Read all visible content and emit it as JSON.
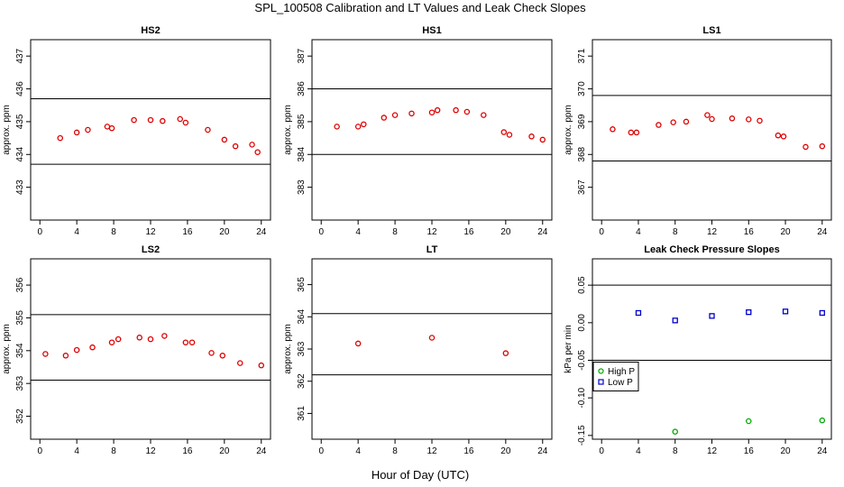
{
  "figure": {
    "title": "SPL_100508  Calibration and LT Values and Leak Check Slopes",
    "xlabel": "Hour of Day (UTC)"
  },
  "chart_data": [
    {
      "type": "scatter",
      "title": "HS2",
      "ylabel": "approx. ppm",
      "xlim": [
        -1,
        25
      ],
      "ylim": [
        432,
        437.5
      ],
      "xticks": [
        0,
        4,
        8,
        12,
        16,
        20,
        24
      ],
      "yticks": [
        433,
        434,
        435,
        436,
        437
      ],
      "hlines": [
        433.7,
        435.7
      ],
      "series": [
        {
          "color": "#dd0000",
          "marker": "circle",
          "x": [
            2.2,
            4.0,
            5.2,
            7.3,
            7.8,
            10.2,
            12.0,
            13.3,
            15.2,
            15.8,
            18.2,
            20.0,
            21.2,
            23.0,
            23.6
          ],
          "y": [
            434.5,
            434.67,
            434.75,
            434.85,
            434.8,
            435.05,
            435.05,
            435.02,
            435.08,
            434.97,
            434.75,
            434.45,
            434.25,
            434.3,
            434.07
          ]
        }
      ]
    },
    {
      "type": "scatter",
      "title": "HS1",
      "ylabel": "approx. ppm",
      "xlim": [
        -1,
        25
      ],
      "ylim": [
        382,
        387.5
      ],
      "xticks": [
        0,
        4,
        8,
        12,
        16,
        20,
        24
      ],
      "yticks": [
        383,
        384,
        385,
        386,
        387
      ],
      "hlines": [
        384,
        386
      ],
      "series": [
        {
          "color": "#dd0000",
          "marker": "circle",
          "x": [
            1.7,
            4.0,
            4.6,
            6.8,
            8.0,
            9.8,
            12.0,
            12.6,
            14.6,
            15.8,
            17.6,
            19.8,
            20.4,
            22.8,
            24.0
          ],
          "y": [
            384.85,
            384.85,
            384.92,
            385.12,
            385.2,
            385.25,
            385.28,
            385.35,
            385.35,
            385.3,
            385.2,
            384.68,
            384.6,
            384.55,
            384.45
          ]
        }
      ]
    },
    {
      "type": "scatter",
      "title": "LS1",
      "ylabel": "approx. ppm",
      "xlim": [
        -1,
        25
      ],
      "ylim": [
        366,
        371.5
      ],
      "xticks": [
        0,
        4,
        8,
        12,
        16,
        20,
        24
      ],
      "yticks": [
        367,
        368,
        369,
        370,
        371
      ],
      "hlines": [
        367.8,
        369.8
      ],
      "series": [
        {
          "color": "#dd0000",
          "marker": "circle",
          "x": [
            1.2,
            3.2,
            3.8,
            6.2,
            7.8,
            9.2,
            11.5,
            12.0,
            14.2,
            16.0,
            17.2,
            19.2,
            19.8,
            22.2,
            24.0
          ],
          "y": [
            368.77,
            368.67,
            368.67,
            368.9,
            368.98,
            369.0,
            369.2,
            369.08,
            369.1,
            369.07,
            369.03,
            368.58,
            368.55,
            368.23,
            368.25
          ]
        }
      ]
    },
    {
      "type": "scatter",
      "title": "LS2",
      "ylabel": "approx. ppm",
      "xlim": [
        -1,
        25
      ],
      "ylim": [
        351.3,
        356.8
      ],
      "xticks": [
        0,
        4,
        8,
        12,
        16,
        20,
        24
      ],
      "yticks": [
        352,
        353,
        354,
        355,
        356
      ],
      "hlines": [
        353.1,
        355.1
      ],
      "series": [
        {
          "color": "#dd0000",
          "marker": "circle",
          "x": [
            0.6,
            2.8,
            4.0,
            5.7,
            7.8,
            8.5,
            10.8,
            12.0,
            13.5,
            15.8,
            16.5,
            18.6,
            19.8,
            21.7,
            24.0
          ],
          "y": [
            353.9,
            353.85,
            354.02,
            354.1,
            354.25,
            354.35,
            354.4,
            354.35,
            354.45,
            354.25,
            354.25,
            353.93,
            353.85,
            353.62,
            353.55
          ]
        }
      ]
    },
    {
      "type": "scatter",
      "title": "LT",
      "ylabel": "approx. ppm",
      "xlim": [
        -1,
        25
      ],
      "ylim": [
        360.2,
        365.8
      ],
      "xticks": [
        0,
        4,
        8,
        12,
        16,
        20,
        24
      ],
      "yticks": [
        361,
        362,
        363,
        364,
        365
      ],
      "hlines": [
        362.2,
        364.1
      ],
      "series": [
        {
          "color": "#dd0000",
          "marker": "circle",
          "x": [
            4.0,
            12.0,
            20.0
          ],
          "y": [
            363.17,
            363.35,
            362.87
          ]
        }
      ]
    },
    {
      "type": "scatter",
      "title": "Leak Check Pressure Slopes",
      "ylabel": "kPa per min",
      "xlim": [
        -1,
        25
      ],
      "ylim": [
        -0.155,
        0.085
      ],
      "xticks": [
        0,
        4,
        8,
        12,
        16,
        20,
        24
      ],
      "yticks": [
        -0.15,
        -0.1,
        -0.05,
        0.0,
        0.05
      ],
      "ytick_labels": [
        "-0.15",
        "-0.10",
        "-0.05",
        "0.00",
        "0.05"
      ],
      "hlines": [
        -0.05,
        0.05
      ],
      "legend": {
        "position": "left",
        "entries": [
          "High P",
          "Low P"
        ]
      },
      "series": [
        {
          "name": "High P",
          "color": "#00aa00",
          "marker": "circle",
          "x": [
            8.0,
            16.0,
            24.0
          ],
          "y": [
            -0.145,
            -0.131,
            -0.13
          ]
        },
        {
          "name": "Low P",
          "color": "#0000cc",
          "marker": "square",
          "x": [
            4.0,
            8.0,
            12.0,
            16.0,
            20.0,
            24.0
          ],
          "y": [
            0.013,
            0.003,
            0.009,
            0.014,
            0.015,
            0.013
          ]
        }
      ]
    }
  ]
}
